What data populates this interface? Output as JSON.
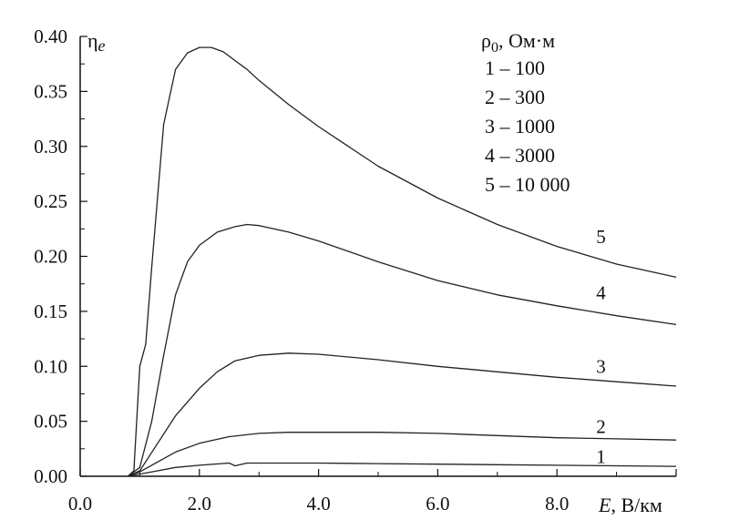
{
  "chart_data": {
    "type": "line",
    "title": "",
    "ylabel": "η",
    "ylabel_sub": "e",
    "xlabel_var": "E",
    "xlabel_unit": ", В/км",
    "xlim": [
      0,
      10
    ],
    "ylim": [
      0,
      0.4
    ],
    "x_ticks": [
      {
        "value": 0,
        "label": "0.0"
      },
      {
        "value": 2,
        "label": "2.0"
      },
      {
        "value": 4,
        "label": "4.0"
      },
      {
        "value": 6,
        "label": "6.0"
      },
      {
        "value": 8,
        "label": "8.0"
      }
    ],
    "y_ticks": [
      {
        "value": 0,
        "label": "0.00"
      },
      {
        "value": 0.05,
        "label": "0.05"
      },
      {
        "value": 0.1,
        "label": "0.10"
      },
      {
        "value": 0.15,
        "label": "0.15"
      },
      {
        "value": 0.2,
        "label": "0.20"
      },
      {
        "value": 0.25,
        "label": "0.25"
      },
      {
        "value": 0.3,
        "label": "0.30"
      },
      {
        "value": 0.35,
        "label": "0.35"
      },
      {
        "value": 0.4,
        "label": "0.40"
      }
    ],
    "grid": false,
    "legend": {
      "placement": "top-right",
      "title_sym": "ρ",
      "title_sub": "0",
      "title_unit": ", Ом·м",
      "entries": [
        "1 – 100",
        "2 – 300",
        "3 – 1000",
        "4 – 3000",
        "5 – 10 000"
      ]
    },
    "series": [
      {
        "label": "1",
        "label_at": [
          8.2,
          0.018
        ],
        "x": [
          0.8,
          1.0,
          1.3,
          1.6,
          2.0,
          2.5,
          2.6,
          2.8,
          3.0,
          4.0,
          5.0,
          6.0,
          7.0,
          8.0,
          9.0,
          10.0
        ],
        "y": [
          0,
          0.002,
          0.005,
          0.008,
          0.01,
          0.012,
          0.0095,
          0.012,
          0.012,
          0.012,
          0.0115,
          0.011,
          0.0105,
          0.01,
          0.0095,
          0.009
        ]
      },
      {
        "label": "2",
        "label_at": [
          8.2,
          0.045
        ],
        "x": [
          0.8,
          1.0,
          1.3,
          1.6,
          2.0,
          2.5,
          3.0,
          3.5,
          4.0,
          5.0,
          6.0,
          7.0,
          8.0,
          9.0,
          10.0
        ],
        "y": [
          0,
          0.004,
          0.013,
          0.022,
          0.03,
          0.036,
          0.039,
          0.04,
          0.04,
          0.04,
          0.039,
          0.037,
          0.035,
          0.034,
          0.033
        ]
      },
      {
        "label": "3",
        "label_at": [
          8.2,
          0.1
        ],
        "x": [
          0.8,
          1.0,
          1.3,
          1.6,
          2.0,
          2.3,
          2.6,
          3.0,
          3.5,
          4.0,
          5.0,
          6.0,
          7.0,
          8.0,
          9.0,
          10.0
        ],
        "y": [
          0,
          0.005,
          0.03,
          0.055,
          0.08,
          0.095,
          0.105,
          0.11,
          0.112,
          0.111,
          0.106,
          0.1,
          0.095,
          0.09,
          0.086,
          0.082
        ]
      },
      {
        "label": "4",
        "label_at": [
          8.2,
          0.167
        ],
        "x": [
          0.8,
          1.0,
          1.2,
          1.4,
          1.6,
          1.8,
          2.0,
          2.3,
          2.6,
          2.8,
          3.0,
          3.5,
          4.0,
          5.0,
          6.0,
          7.0,
          8.0,
          9.0,
          10.0
        ],
        "y": [
          0,
          0.008,
          0.05,
          0.11,
          0.165,
          0.195,
          0.21,
          0.222,
          0.227,
          0.229,
          0.228,
          0.222,
          0.214,
          0.195,
          0.178,
          0.165,
          0.155,
          0.146,
          0.138
        ]
      },
      {
        "label": "5",
        "label_at": [
          8.2,
          0.218
        ],
        "x": [
          0.8,
          0.9,
          1.0,
          1.1,
          1.2,
          1.4,
          1.6,
          1.8,
          2.0,
          2.2,
          2.4,
          2.6,
          2.8,
          3.0,
          3.5,
          4.0,
          5.0,
          6.0,
          7.0,
          8.0,
          9.0,
          10.0
        ],
        "y": [
          0,
          0.005,
          0.1,
          0.12,
          0.19,
          0.32,
          0.37,
          0.385,
          0.39,
          0.39,
          0.386,
          0.378,
          0.37,
          0.36,
          0.338,
          0.318,
          0.282,
          0.253,
          0.229,
          0.209,
          0.193,
          0.181
        ]
      }
    ]
  }
}
